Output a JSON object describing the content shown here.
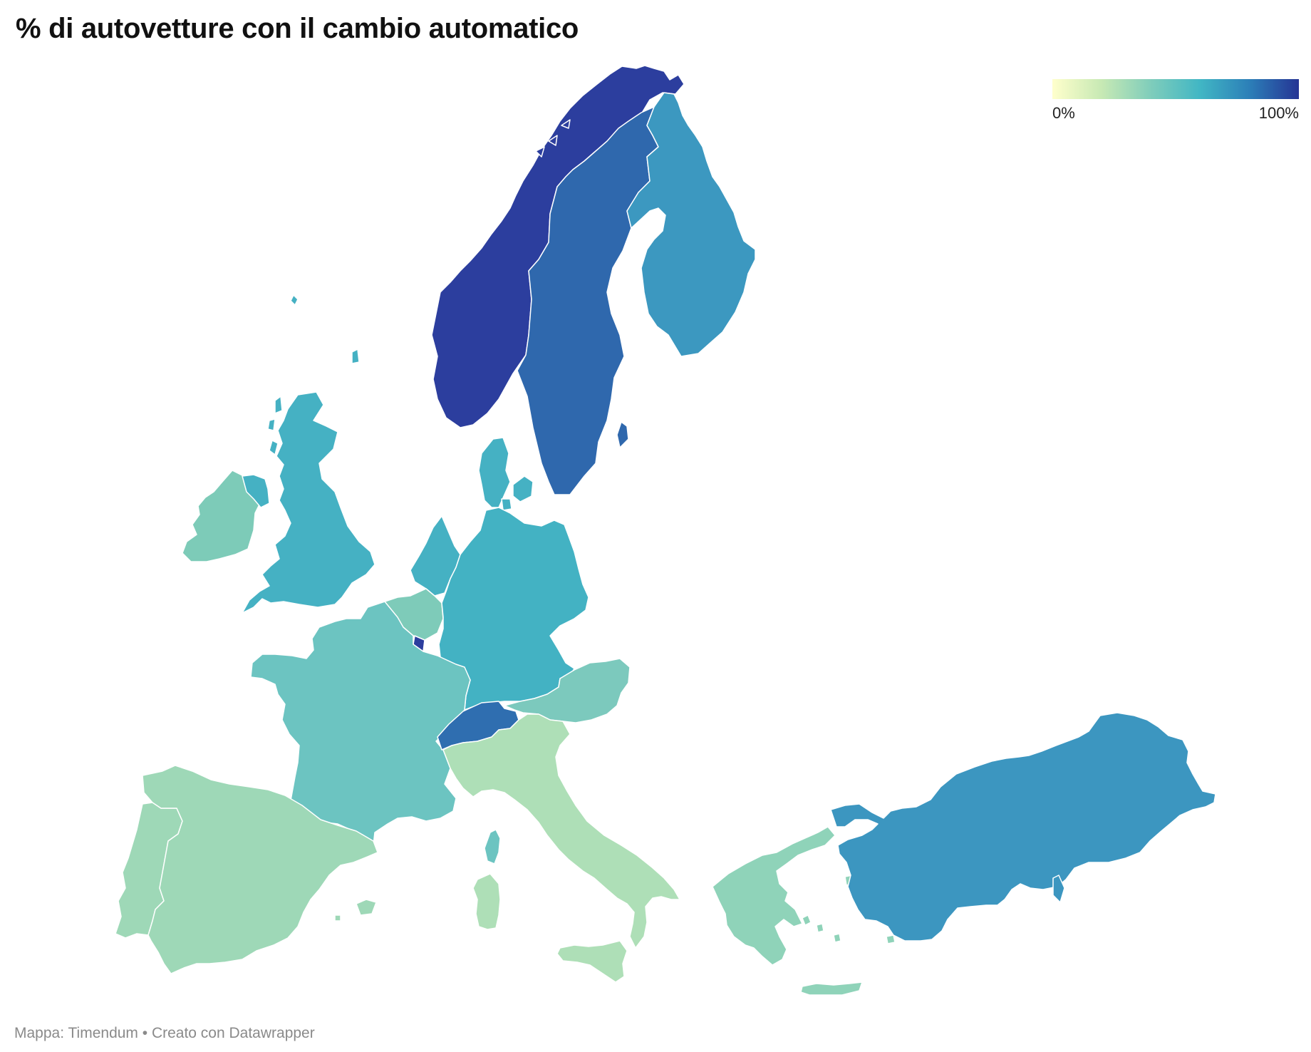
{
  "title": "% di autovetture con il cambio automatico",
  "legend": {
    "min_label": "0%",
    "max_label": "100%",
    "colors": [
      "#ffffcc",
      "#c7e9b4",
      "#7fcdbb",
      "#41b6c4",
      "#2c7fb8",
      "#253494"
    ]
  },
  "footer": "Mappa: Timendum • Creato con Datawrapper",
  "map_data": {
    "type": "choropleth",
    "scale": [
      0,
      100
    ],
    "regions": [
      {
        "id": "norway",
        "color": "#2c3e9e"
      },
      {
        "id": "sweden",
        "color": "#2f68ad"
      },
      {
        "id": "finland",
        "color": "#3c98c0"
      },
      {
        "id": "denmark",
        "color": "#45b1c3"
      },
      {
        "id": "united-kingdom",
        "color": "#45b1c3"
      },
      {
        "id": "ireland",
        "color": "#7dcbb8"
      },
      {
        "id": "netherlands",
        "color": "#45b1c3"
      },
      {
        "id": "belgium",
        "color": "#7ecbb9"
      },
      {
        "id": "luxembourg",
        "color": "#2c3e9e"
      },
      {
        "id": "germany",
        "color": "#43b2c3"
      },
      {
        "id": "france",
        "color": "#6cc4c1"
      },
      {
        "id": "switzerland",
        "color": "#2f6eb0"
      },
      {
        "id": "austria",
        "color": "#7cc9bd"
      },
      {
        "id": "italy",
        "color": "#aedfb7"
      },
      {
        "id": "spain",
        "color": "#9ed8b7"
      },
      {
        "id": "portugal",
        "color": "#9ed8b7"
      },
      {
        "id": "greece",
        "color": "#8fd3b9"
      },
      {
        "id": "turkey",
        "color": "#3c96c0"
      },
      {
        "id": "corsica",
        "color": "#6cc4c1"
      },
      {
        "id": "sardinia",
        "color": "#aedfb7"
      },
      {
        "id": "sicily",
        "color": "#aedfb7"
      }
    ]
  }
}
